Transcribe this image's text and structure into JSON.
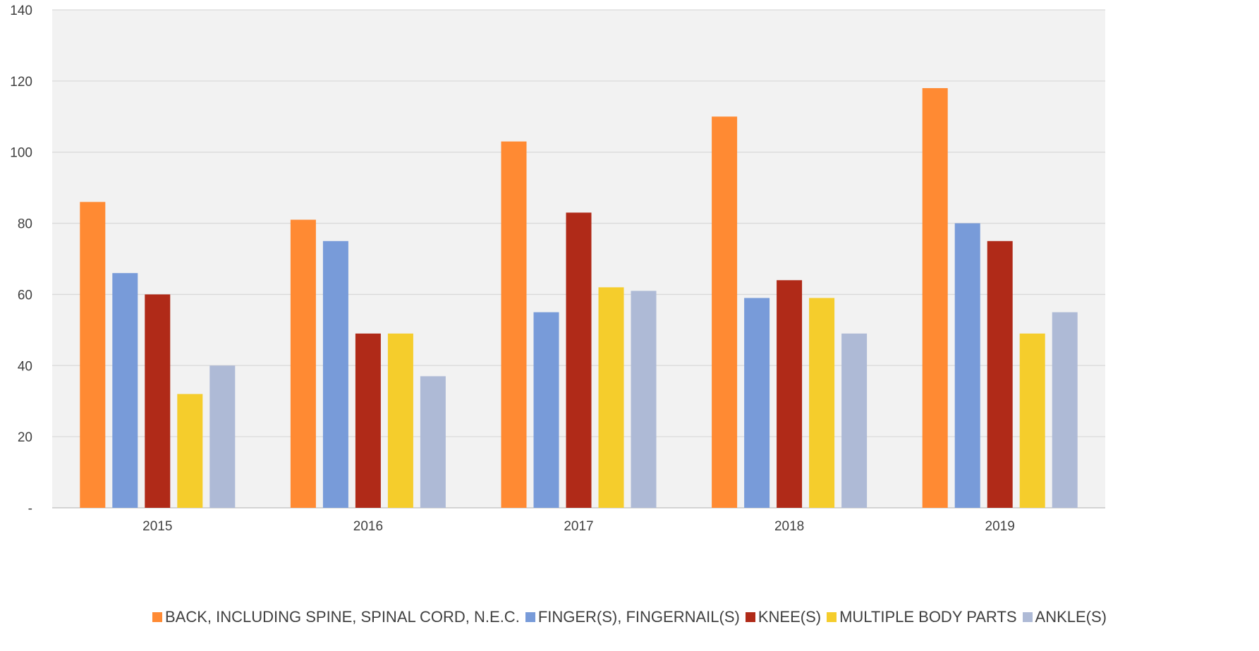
{
  "chart_data": {
    "type": "bar",
    "title": "",
    "xlabel": "",
    "ylabel": "",
    "categories": [
      "2015",
      "2016",
      "2017",
      "2018",
      "2019"
    ],
    "ylim": [
      0,
      140
    ],
    "yticks": [
      0,
      20,
      40,
      60,
      80,
      100,
      120,
      140
    ],
    "ytick_labels": [
      "-",
      "20",
      "40",
      "60",
      "80",
      "100",
      "120",
      "140"
    ],
    "grid": true,
    "legend_position": "bottom",
    "series": [
      {
        "name": "BACK, INCLUDING SPINE, SPINAL CORD, N.E.C.",
        "color": "#FF8A33",
        "values": [
          86,
          81,
          103,
          110,
          118
        ]
      },
      {
        "name": "FINGER(S), FINGERNAIL(S)",
        "color": "#789BD9",
        "values": [
          66,
          75,
          55,
          59,
          80
        ]
      },
      {
        "name": "KNEE(S)",
        "color": "#B02A18",
        "values": [
          60,
          49,
          83,
          64,
          75
        ]
      },
      {
        "name": "MULTIPLE BODY PARTS",
        "color": "#F5CD2C",
        "values": [
          32,
          49,
          62,
          59,
          49
        ]
      },
      {
        "name": "ANKLE(S)",
        "color": "#AEBAD6",
        "values": [
          40,
          37,
          61,
          49,
          55
        ]
      }
    ]
  }
}
